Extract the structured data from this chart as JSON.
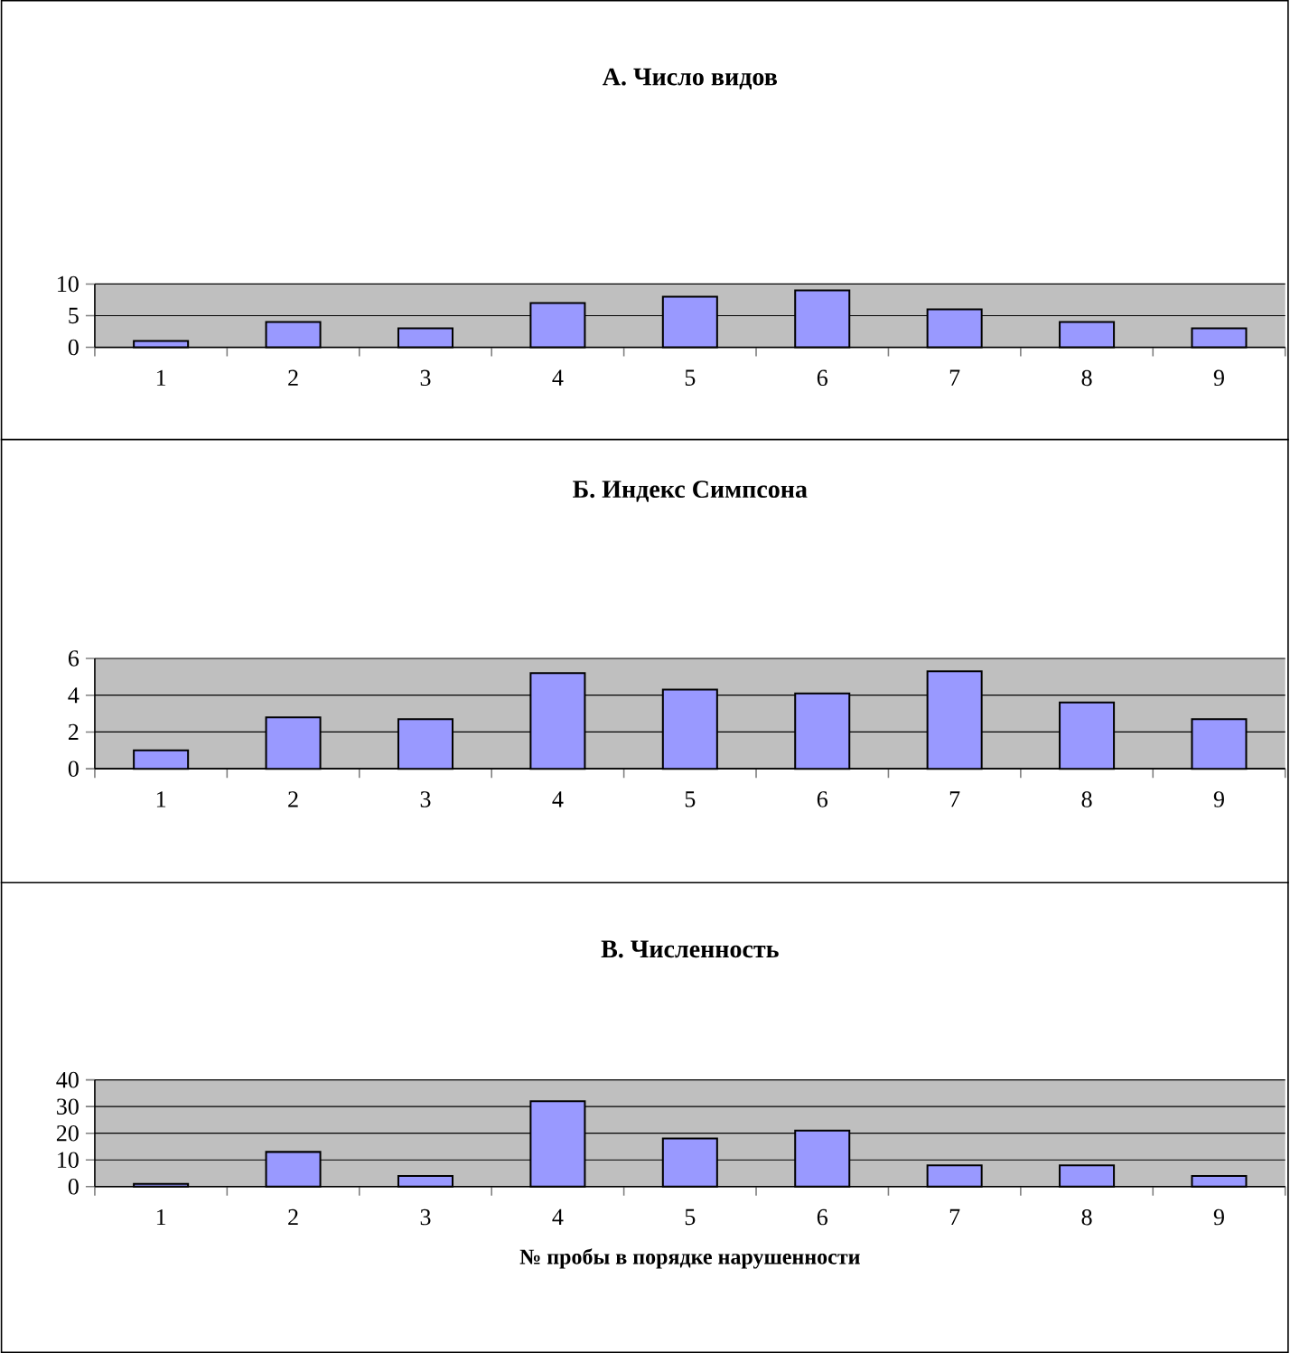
{
  "chart_data": [
    {
      "type": "bar",
      "title": "А. Число видов",
      "categories": [
        "1",
        "2",
        "3",
        "4",
        "5",
        "6",
        "7",
        "8",
        "9"
      ],
      "values": [
        1,
        4,
        3,
        7,
        8,
        9,
        6,
        4,
        3
      ],
      "color": "#9999ff",
      "ylim": [
        0,
        10
      ],
      "yticks": [
        0,
        5,
        10
      ],
      "grid": "y"
    },
    {
      "type": "bar",
      "title": "Б. Индекс Симпсона",
      "categories": [
        "1",
        "2",
        "3",
        "4",
        "5",
        "6",
        "7",
        "8",
        "9"
      ],
      "values": [
        1.0,
        2.8,
        2.7,
        5.2,
        4.3,
        4.1,
        5.3,
        3.6,
        2.7
      ],
      "color": "#9999ff",
      "ylim": [
        0,
        6
      ],
      "yticks": [
        0,
        2,
        4,
        6
      ],
      "grid": "y"
    },
    {
      "type": "bar",
      "title": "В. Численность",
      "xlabel": "№ пробы в порядке нарушенности",
      "categories": [
        "1",
        "2",
        "3",
        "4",
        "5",
        "6",
        "7",
        "8",
        "9"
      ],
      "values": [
        1,
        13,
        4,
        32,
        18,
        21,
        8,
        8,
        4
      ],
      "color": "#9999ff",
      "ylim": [
        0,
        40
      ],
      "yticks": [
        0,
        10,
        20,
        30,
        40
      ],
      "grid": "y"
    }
  ]
}
